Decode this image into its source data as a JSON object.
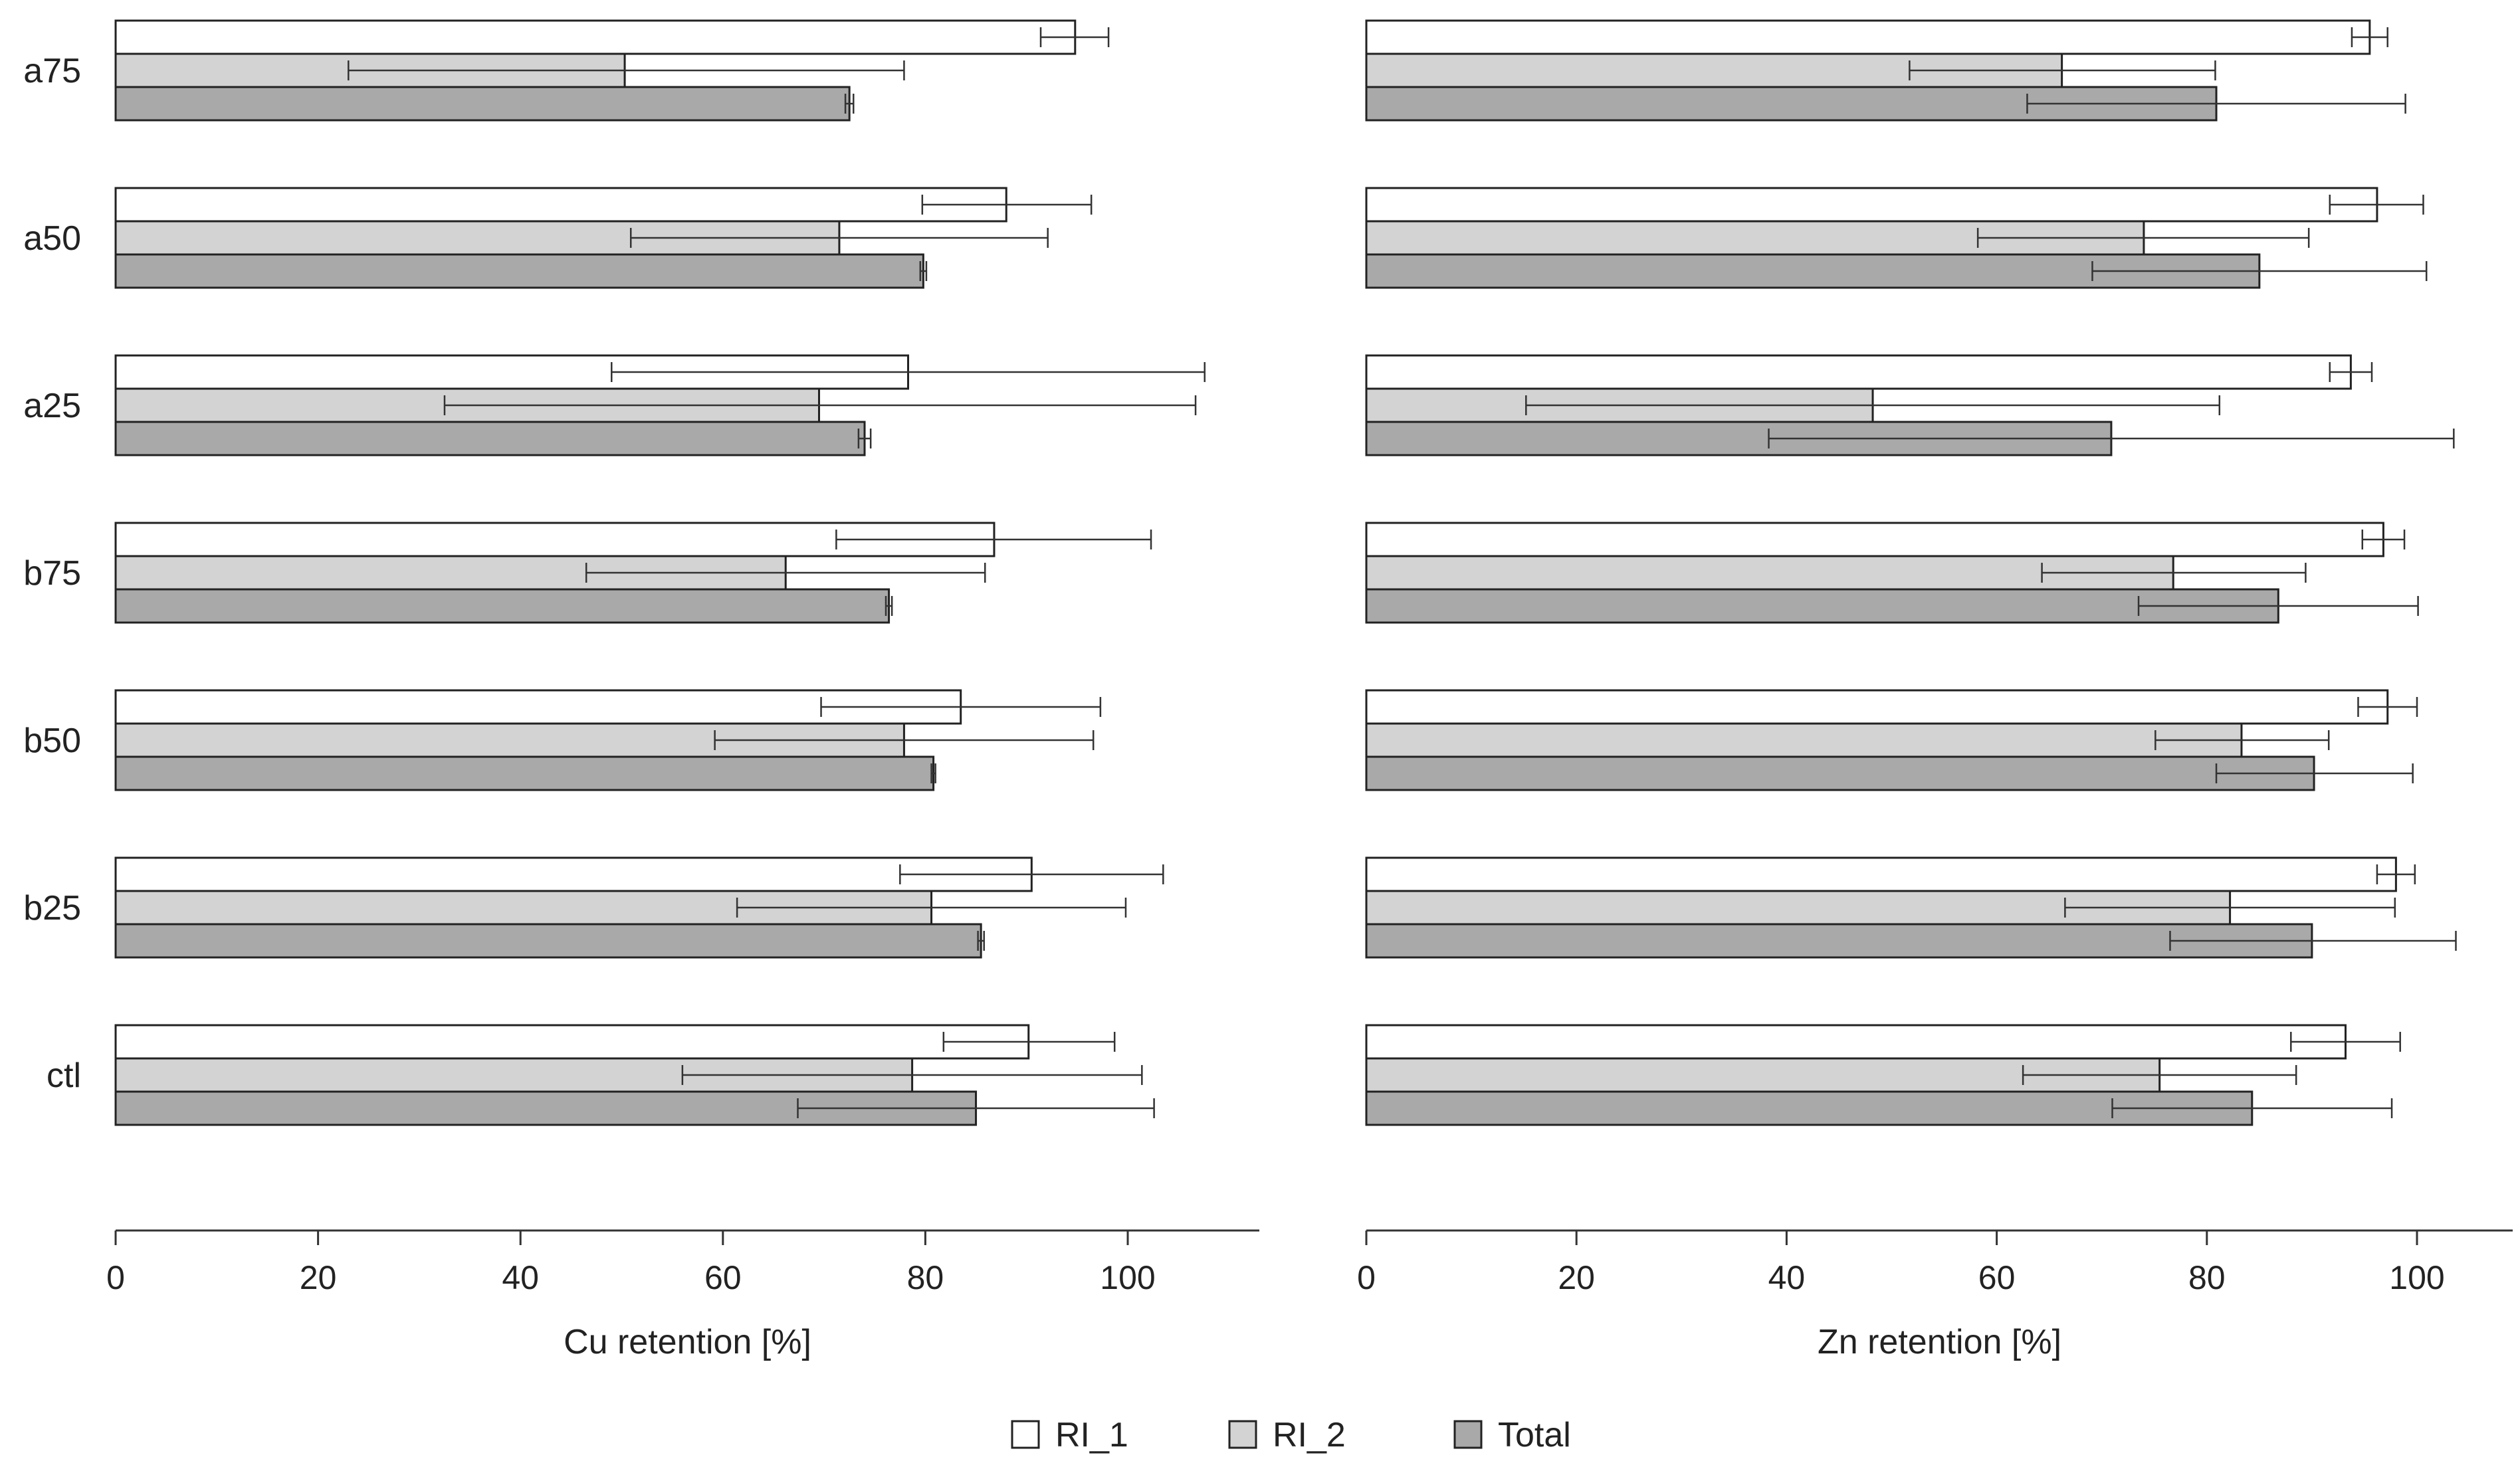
{
  "chart_data": [
    {
      "type": "bar",
      "orientation": "horizontal",
      "xlabel": "Cu retention [%]",
      "xlim": [
        0,
        113
      ],
      "xticks": [
        0,
        20,
        40,
        60,
        80,
        100
      ],
      "categories": [
        "a75",
        "a50",
        "a25",
        "b75",
        "b50",
        "b25",
        "ctl"
      ],
      "series": [
        {
          "name": "RI_1",
          "values": [
            94.8,
            88.0,
            78.3,
            86.8,
            83.5,
            90.5,
            90.2
          ],
          "err_low": [
            91.4,
            79.7,
            49.0,
            71.2,
            69.7,
            77.5,
            81.8
          ],
          "err_high": [
            98.1,
            96.4,
            107.6,
            102.3,
            97.3,
            103.5,
            98.7
          ]
        },
        {
          "name": "RI_2",
          "values": [
            50.3,
            71.5,
            69.5,
            66.2,
            77.9,
            80.6,
            78.7
          ],
          "err_low": [
            23.0,
            50.9,
            32.5,
            46.5,
            59.2,
            61.4,
            56.0
          ],
          "err_high": [
            77.9,
            92.1,
            106.7,
            85.9,
            96.6,
            99.8,
            101.4
          ]
        },
        {
          "name": "Total",
          "values": [
            72.5,
            79.8,
            74.0,
            76.4,
            80.8,
            85.5,
            85.0
          ],
          "err_low": [
            72.1,
            79.5,
            73.4,
            76.1,
            80.6,
            85.2,
            67.4
          ],
          "err_high": [
            72.9,
            80.1,
            74.6,
            76.7,
            81.0,
            85.8,
            102.6
          ]
        }
      ]
    },
    {
      "type": "bar",
      "orientation": "horizontal",
      "xlabel": "Zn retention [%]",
      "xlim": [
        0,
        109
      ],
      "xticks": [
        0,
        20,
        40,
        60,
        80,
        100
      ],
      "categories": [
        "a75",
        "a50",
        "a25",
        "b75",
        "b50",
        "b25",
        "ctl"
      ],
      "series": [
        {
          "name": "RI_1",
          "values": [
            95.5,
            96.2,
            93.7,
            96.8,
            97.2,
            98.0,
            93.2
          ],
          "err_low": [
            93.8,
            91.7,
            91.7,
            94.8,
            94.4,
            96.2,
            88.0
          ],
          "err_high": [
            97.2,
            100.6,
            95.7,
            98.8,
            100.0,
            99.8,
            98.4
          ]
        },
        {
          "name": "RI_2",
          "values": [
            66.2,
            74.0,
            48.2,
            76.8,
            83.3,
            82.2,
            75.5
          ],
          "err_low": [
            51.7,
            58.2,
            15.2,
            64.3,
            75.1,
            66.5,
            62.5
          ],
          "err_high": [
            80.8,
            89.7,
            81.2,
            89.4,
            91.6,
            97.9,
            88.5
          ]
        },
        {
          "name": "Total",
          "values": [
            80.9,
            85.0,
            70.9,
            86.8,
            90.2,
            90.0,
            84.3
          ],
          "err_low": [
            62.9,
            69.1,
            38.3,
            73.5,
            80.9,
            76.5,
            71.0
          ],
          "err_high": [
            98.9,
            100.9,
            103.5,
            100.1,
            99.6,
            103.7,
            97.6
          ]
        }
      ]
    }
  ],
  "legend": [
    {
      "label": "RI_1",
      "color": "#ffffff"
    },
    {
      "label": "RI_2",
      "color": "#d3d3d3"
    },
    {
      "label": "Total",
      "color": "#a9a9a9"
    }
  ]
}
